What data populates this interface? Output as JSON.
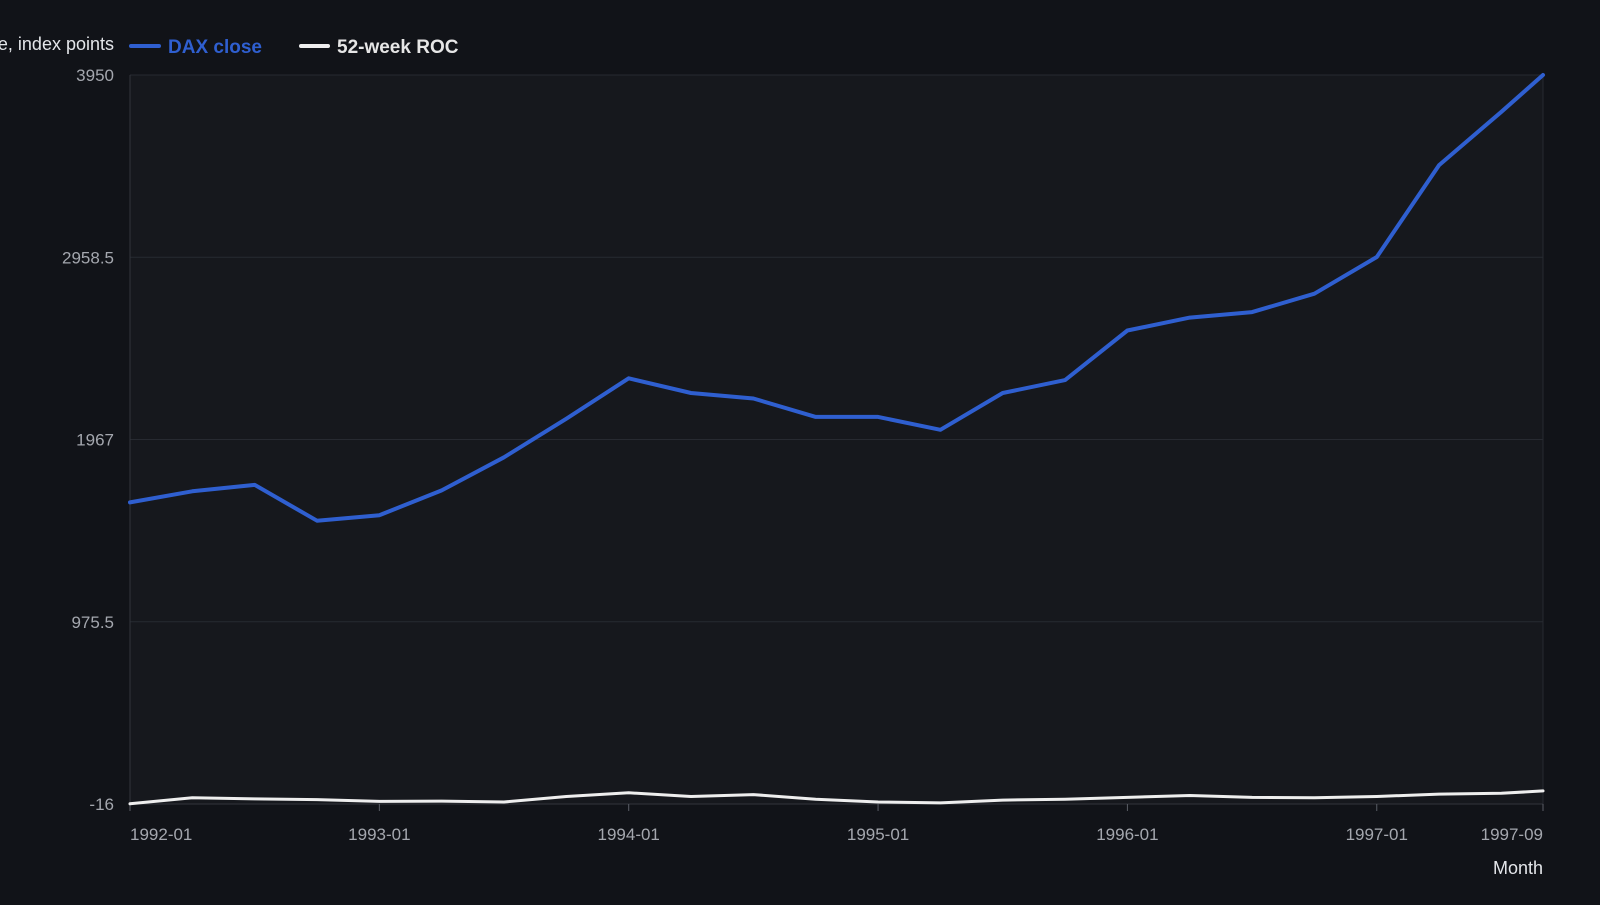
{
  "chart_data": {
    "type": "line",
    "ylabel": "Value, index points",
    "xlabel": "Month",
    "ylim": [
      -16,
      3950
    ],
    "y_ticks": [
      "3950",
      "2958.5",
      "1967",
      "975.5",
      "-16"
    ],
    "y_tick_values": [
      3950,
      2958.5,
      1967,
      975.5,
      -16
    ],
    "x_ticks": [
      "1992-01",
      "1993-01",
      "1994-01",
      "1995-01",
      "1996-01",
      "1997-01",
      "1997-09"
    ],
    "x_tick_values": [
      "1992-01",
      "1993-01",
      "1994-01",
      "1995-01",
      "1996-01",
      "1997-01",
      "1997-09"
    ],
    "x": [
      "1992-01",
      "1992-04",
      "1992-07",
      "1992-10",
      "1993-01",
      "1993-04",
      "1993-07",
      "1993-10",
      "1994-01",
      "1994-04",
      "1994-07",
      "1994-10",
      "1995-01",
      "1995-04",
      "1995-07",
      "1995-10",
      "1996-01",
      "1996-04",
      "1996-07",
      "1996-10",
      "1997-01",
      "1997-04",
      "1997-07",
      "1997-09"
    ],
    "series": [
      {
        "name": "DAX close",
        "color": "#2f5fd0",
        "values": [
          1625,
          1685,
          1720,
          1525,
          1555,
          1690,
          1870,
          2080,
          2300,
          2220,
          2190,
          2090,
          2090,
          2020,
          2220,
          2290,
          2560,
          2630,
          2660,
          2760,
          2960,
          3460,
          3750,
          3950
        ]
      },
      {
        "name": "52-week ROC",
        "color": "#eeeeee",
        "values": [
          -15,
          18,
          12,
          8,
          -2,
          0,
          -5,
          25,
          45,
          25,
          35,
          10,
          -5,
          -10,
          5,
          10,
          20,
          30,
          20,
          18,
          25,
          38,
          42,
          55
        ]
      }
    ],
    "grid": true,
    "legend": "top-left"
  },
  "legend_colors": {
    "dax": "#2f5fd0",
    "roc": "#eeeeee"
  }
}
